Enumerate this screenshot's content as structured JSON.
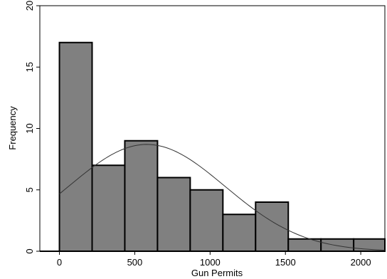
{
  "chart_data": {
    "type": "bar",
    "subtype": "histogram",
    "title": "",
    "xlabel": "Gun Permits",
    "ylabel": "Frequency",
    "xlim": [
      -130,
      2160
    ],
    "ylim": [
      0,
      20
    ],
    "xticks": [
      0,
      500,
      1000,
      1500,
      2000
    ],
    "yticks": [
      0,
      5,
      10,
      15,
      20
    ],
    "bins": [
      {
        "x0": 0,
        "x1": 217,
        "count": 17
      },
      {
        "x0": 217,
        "x1": 434,
        "count": 7
      },
      {
        "x0": 434,
        "x1": 651,
        "count": 9
      },
      {
        "x0": 651,
        "x1": 868,
        "count": 6
      },
      {
        "x0": 868,
        "x1": 1085,
        "count": 5
      },
      {
        "x0": 1085,
        "x1": 1302,
        "count": 3
      },
      {
        "x0": 1302,
        "x1": 1519,
        "count": 4
      },
      {
        "x0": 1519,
        "x1": 1736,
        "count": 1
      },
      {
        "x0": 1736,
        "x1": 1953,
        "count": 1
      },
      {
        "x0": 1953,
        "x1": 2170,
        "count": 1
      }
    ],
    "normal_curve": {
      "mean": 580,
      "sd": 520,
      "peak": 8.7
    },
    "grid": false,
    "colors": {
      "bar_fill": "#808080",
      "bar_stroke": "#000000",
      "curve": "#333333"
    }
  }
}
